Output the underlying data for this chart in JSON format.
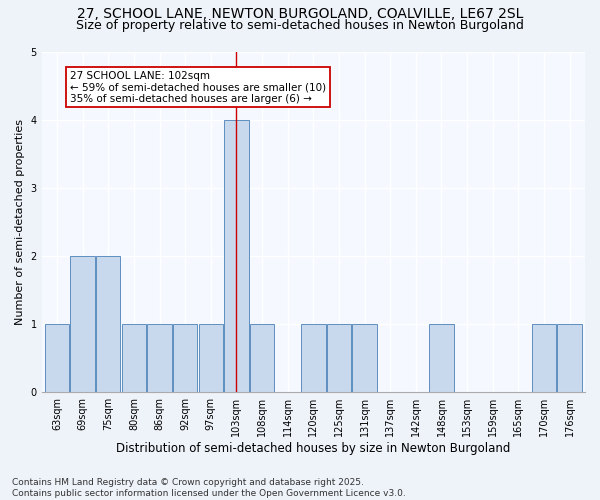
{
  "title1": "27, SCHOOL LANE, NEWTON BURGOLAND, COALVILLE, LE67 2SL",
  "title2": "Size of property relative to semi-detached houses in Newton Burgoland",
  "xlabel": "Distribution of semi-detached houses by size in Newton Burgoland",
  "ylabel": "Number of semi-detached properties",
  "bins": [
    "63sqm",
    "69sqm",
    "75sqm",
    "80sqm",
    "86sqm",
    "92sqm",
    "97sqm",
    "103sqm",
    "108sqm",
    "114sqm",
    "120sqm",
    "125sqm",
    "131sqm",
    "137sqm",
    "142sqm",
    "148sqm",
    "153sqm",
    "159sqm",
    "165sqm",
    "170sqm",
    "176sqm"
  ],
  "values": [
    1,
    2,
    2,
    1,
    1,
    1,
    1,
    4,
    1,
    0,
    1,
    1,
    1,
    0,
    0,
    1,
    0,
    0,
    0,
    1,
    1
  ],
  "bar_color": "#c9d9ed",
  "bar_edge_color": "#5f8fc0",
  "highlight_bin_index": 7,
  "annotation_text": "27 SCHOOL LANE: 102sqm\n← 59% of semi-detached houses are smaller (10)\n35% of semi-detached houses are larger (6) →",
  "annotation_box_color": "white",
  "annotation_box_edge": "#cc0000",
  "vline_color": "#cc0000",
  "ylim": [
    0,
    5
  ],
  "yticks": [
    0,
    1,
    2,
    3,
    4,
    5
  ],
  "footnote": "Contains HM Land Registry data © Crown copyright and database right 2025.\nContains public sector information licensed under the Open Government Licence v3.0.",
  "bg_color": "#eef2f9",
  "plot_bg_color": "#f5f8fe",
  "grid_color": "#ffffff",
  "title1_fontsize": 10,
  "title2_fontsize": 9,
  "xlabel_fontsize": 8.5,
  "ylabel_fontsize": 8,
  "tick_fontsize": 7,
  "annotation_fontsize": 7.5,
  "footnote_fontsize": 6.5
}
